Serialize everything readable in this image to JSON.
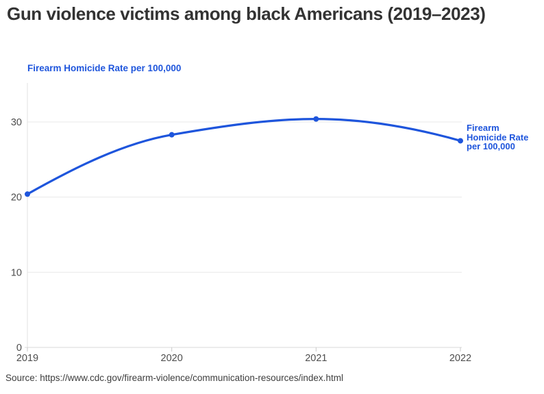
{
  "header": {
    "title": "Gun violence victims among black Americans (2019–2023)"
  },
  "footer": {
    "source": "Source: https://www.cdc.gov/firearm-violence/communication-resources/index.html"
  },
  "chart_data": {
    "type": "line",
    "title": "Gun violence victims among black Americans (2019–2023)",
    "categories": [
      "2019",
      "2020",
      "2021",
      "2022"
    ],
    "x": [
      2019,
      2020,
      2021,
      2022
    ],
    "series": [
      {
        "name": "Firearm Homicide Rate per 100,000",
        "values": [
          20.4,
          28.3,
          30.4,
          27.5
        ]
      }
    ],
    "xlabel": "",
    "ylabel": "Firearm Homicide Rate per 100,000",
    "yticks": [
      0,
      10,
      20,
      30
    ],
    "ylim": [
      0,
      35.2
    ],
    "grid": "horizontal",
    "legend_position": "end-of-line",
    "curve": "monotone",
    "source": "Source: https://www.cdc.gov/firearm-violence/communication-resources/index.html"
  },
  "style": {
    "line_color": "#1e55dc",
    "point_color": "#1e55dc",
    "title_color": "#333333",
    "axis_text_color": "#4d4d4d",
    "grid_color": "#e9e9e9",
    "baseline_color": "#d9d9d9",
    "axis_line_color": "#e2e2e2",
    "tick_color": "#c9c9c9"
  }
}
